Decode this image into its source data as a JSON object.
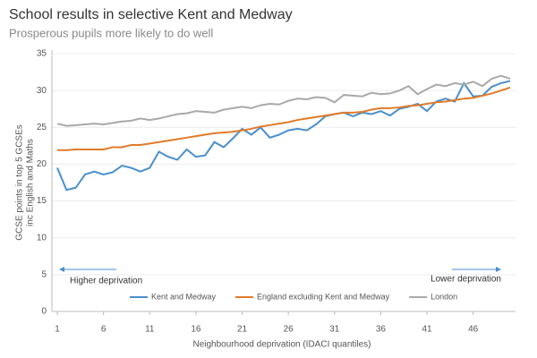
{
  "chart_data": {
    "type": "line",
    "title": "School results in selective Kent and Medway",
    "subtitle": "Prosperous pupils more likely to do well",
    "x_label": "Neighbourhood deprivation (IDACI quantiles)",
    "y_label": [
      "GCSE points in top 5 GCSEs",
      "inc English and Maths"
    ],
    "annotations": [
      "Higher deprivation",
      "Lower deprivation"
    ],
    "x": [
      1,
      2,
      3,
      4,
      5,
      6,
      7,
      8,
      9,
      10,
      11,
      12,
      13,
      14,
      15,
      16,
      17,
      18,
      19,
      20,
      21,
      22,
      23,
      24,
      25,
      26,
      27,
      28,
      29,
      30,
      31,
      32,
      33,
      34,
      35,
      36,
      37,
      38,
      39,
      40,
      41,
      42,
      43,
      44,
      45,
      46,
      47,
      48,
      49,
      50
    ],
    "series": [
      {
        "name": "Kent and Medway",
        "color": "#4a8fcc",
        "values": [
          19.5,
          16.5,
          16.8,
          18.6,
          19,
          18.6,
          18.9,
          19.8,
          19.5,
          19,
          19.5,
          21.7,
          21,
          20.6,
          22,
          21,
          21.2,
          23,
          22.3,
          23.5,
          24.8,
          24,
          25,
          23.6,
          24,
          24.6,
          24.8,
          24.6,
          25.4,
          26.5,
          26.8,
          27,
          26.5,
          27,
          26.8,
          27.2,
          26.6,
          27.5,
          27.8,
          28.2,
          27.2,
          28.5,
          28.9,
          28.5,
          31,
          29.2,
          29.3,
          30.5,
          31,
          31.3
        ]
      },
      {
        "name": "England excluding Kent and Medway",
        "color": "#e07b2a",
        "values": [
          21.9,
          21.9,
          22,
          22,
          22,
          22,
          22.3,
          22.3,
          22.6,
          22.6,
          22.8,
          23,
          23.2,
          23.4,
          23.6,
          23.8,
          24,
          24.2,
          24.3,
          24.4,
          24.6,
          24.8,
          25.1,
          25.3,
          25.5,
          25.7,
          26,
          26.2,
          26.4,
          26.6,
          26.8,
          27,
          27,
          27.1,
          27.4,
          27.6,
          27.6,
          27.7,
          27.9,
          28,
          28.2,
          28.4,
          28.5,
          28.7,
          28.9,
          29,
          29.3,
          29.6,
          30,
          30.4
        ]
      },
      {
        "name": "London",
        "color": "#a9a9a9",
        "values": [
          25.5,
          25.2,
          25.3,
          25.4,
          25.5,
          25.4,
          25.6,
          25.8,
          25.9,
          26.2,
          26,
          26.2,
          26.5,
          26.8,
          26.9,
          27.2,
          27.1,
          27,
          27.4,
          27.6,
          27.8,
          27.6,
          28,
          28.2,
          28.1,
          28.6,
          28.9,
          28.8,
          29.1,
          29,
          28.4,
          29.4,
          29.3,
          29.2,
          29.7,
          29.5,
          29.6,
          30,
          30.6,
          29.5,
          30.2,
          30.8,
          30.6,
          31,
          30.8,
          31.2,
          30.6,
          31.6,
          32,
          31.6
        ]
      }
    ],
    "xlim": [
      1,
      50
    ],
    "xticks": [
      1,
      6,
      11,
      16,
      21,
      26,
      31,
      36,
      41,
      46
    ],
    "ylim": [
      0,
      35
    ],
    "yticks": [
      0,
      5,
      10,
      15,
      20,
      25,
      30,
      35
    ],
    "grid": true,
    "legend": "bottom"
  }
}
